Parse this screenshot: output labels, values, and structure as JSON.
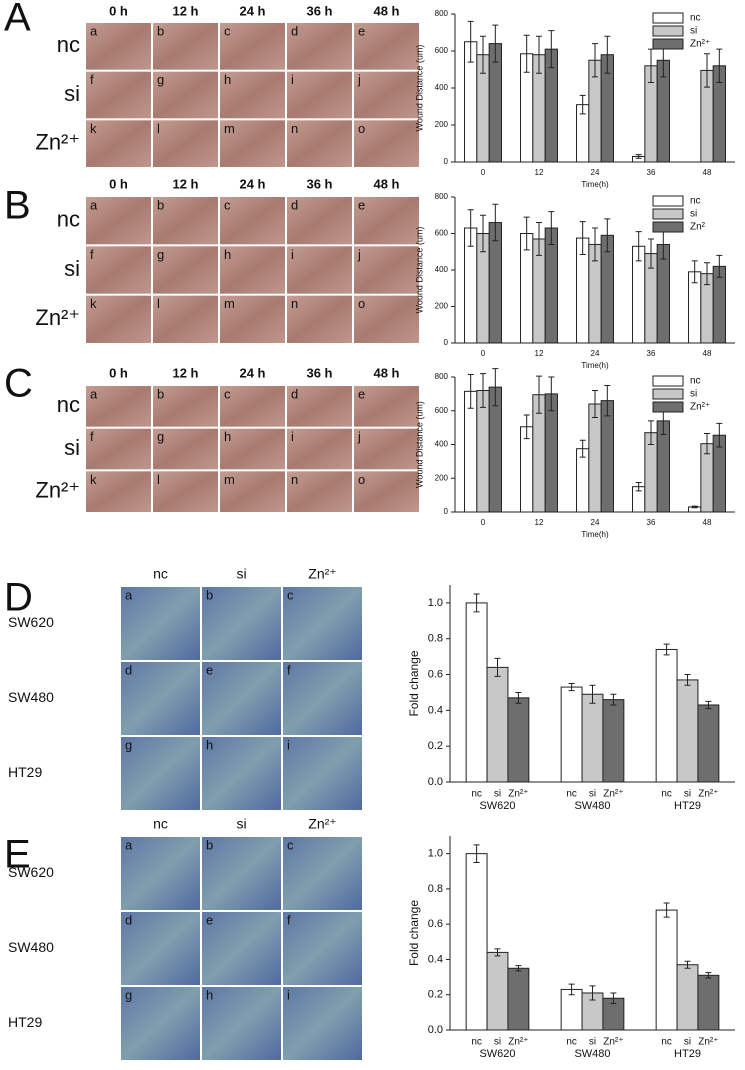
{
  "panels": [
    {
      "letter": "A",
      "columns": [
        "0 h",
        "12 h",
        "24 h",
        "36 h",
        "48 h"
      ],
      "rows": [
        "nc",
        "si",
        "Zn²⁺"
      ],
      "cells": [
        "a",
        "b",
        "c",
        "d",
        "e",
        "f",
        "g",
        "h",
        "i",
        "j",
        "k",
        "l",
        "m",
        "n",
        "o"
      ]
    },
    {
      "letter": "B",
      "columns": [
        "0 h",
        "12 h",
        "24 h",
        "36 h",
        "48 h"
      ],
      "rows": [
        "nc",
        "si",
        "Zn²⁺"
      ],
      "cells": [
        "a",
        "b",
        "c",
        "d",
        "e",
        "f",
        "g",
        "h",
        "i",
        "j",
        "k",
        "l",
        "m",
        "n",
        "o"
      ]
    },
    {
      "letter": "C",
      "columns": [
        "0 h",
        "12 h",
        "24 h",
        "36 h",
        "48 h"
      ],
      "rows": [
        "nc",
        "si",
        "Zn²⁺"
      ],
      "cells": [
        "a",
        "b",
        "c",
        "d",
        "e",
        "f",
        "g",
        "h",
        "i",
        "j",
        "k",
        "l",
        "m",
        "n",
        "o"
      ]
    },
    {
      "letter": "D",
      "columns": [
        "nc",
        "si",
        "Zn²⁺"
      ],
      "rows": [
        "SW620",
        "SW480",
        "HT29"
      ],
      "cells": [
        "a",
        "b",
        "c",
        "d",
        "e",
        "f",
        "g",
        "h",
        "i"
      ]
    },
    {
      "letter": "E",
      "columns": [
        "nc",
        "si",
        "Zn²⁺"
      ],
      "rows": [
        "SW620",
        "SW480",
        "HT29"
      ],
      "cells": [
        "a",
        "b",
        "c",
        "d",
        "e",
        "f",
        "g",
        "h",
        "i"
      ]
    }
  ],
  "chart_data": [
    {
      "type": "bar",
      "ylabel": "Wound Distance (um)",
      "xlabel": "Time(h)",
      "categories": [
        "0",
        "12",
        "24",
        "36",
        "48"
      ],
      "series": [
        {
          "name": "nc",
          "color": "#ffffff",
          "values": [
            650,
            585,
            310,
            30,
            null
          ],
          "errors": [
            110,
            100,
            50,
            10,
            null
          ]
        },
        {
          "name": "si",
          "color": "#c8c8c8",
          "values": [
            580,
            580,
            550,
            520,
            495
          ],
          "errors": [
            100,
            100,
            90,
            90,
            90
          ]
        },
        {
          "name": "Zn²⁺",
          "color": "#6e6e6e",
          "values": [
            640,
            610,
            580,
            550,
            520
          ],
          "errors": [
            100,
            100,
            100,
            90,
            90
          ]
        }
      ],
      "ylim": [
        0,
        800
      ],
      "yticks": [
        0,
        200,
        400,
        600,
        800
      ],
      "legend": "upper right"
    },
    {
      "type": "bar",
      "ylabel": "Wound Distance (um)",
      "xlabel": "Time(h)",
      "categories": [
        "0",
        "12",
        "24",
        "36",
        "48"
      ],
      "series": [
        {
          "name": "nc",
          "color": "#ffffff",
          "values": [
            630,
            600,
            575,
            530,
            390
          ],
          "errors": [
            100,
            90,
            90,
            80,
            60
          ]
        },
        {
          "name": "si",
          "color": "#c8c8c8",
          "values": [
            600,
            570,
            540,
            490,
            380
          ],
          "errors": [
            100,
            90,
            90,
            80,
            60
          ]
        },
        {
          "name": "Zn²",
          "color": "#6e6e6e",
          "values": [
            660,
            630,
            590,
            540,
            420
          ],
          "errors": [
            100,
            90,
            90,
            80,
            60
          ]
        }
      ],
      "ylim": [
        0,
        800
      ],
      "yticks": [
        0,
        200,
        400,
        600,
        800
      ],
      "legend": "upper right"
    },
    {
      "type": "bar",
      "ylabel": "Wound Distance (um)",
      "xlabel": "Time(h)",
      "categories": [
        "0",
        "12",
        "24",
        "36",
        "48"
      ],
      "series": [
        {
          "name": "nc",
          "color": "#ffffff",
          "values": [
            715,
            505,
            375,
            150,
            30
          ],
          "errors": [
            100,
            70,
            50,
            25,
            5
          ]
        },
        {
          "name": "si",
          "color": "#c8c8c8",
          "values": [
            720,
            695,
            640,
            470,
            405
          ],
          "errors": [
            100,
            110,
            80,
            70,
            60
          ]
        },
        {
          "name": "Zn²⁺",
          "color": "#6e6e6e",
          "values": [
            740,
            700,
            660,
            540,
            455
          ],
          "errors": [
            110,
            100,
            90,
            80,
            70
          ]
        }
      ],
      "ylim": [
        0,
        800
      ],
      "yticks": [
        0,
        200,
        400,
        600,
        800
      ],
      "legend": "upper right"
    },
    {
      "type": "bar",
      "ylabel": "Fold change",
      "categories": [
        "SW620",
        "SW480",
        "HT29"
      ],
      "series": [
        {
          "name": "nc",
          "color": "#ffffff",
          "values": [
            1.0,
            0.53,
            0.74
          ],
          "errors": [
            0.05,
            0.02,
            0.03
          ]
        },
        {
          "name": "si",
          "color": "#c8c8c8",
          "values": [
            0.64,
            0.49,
            0.57
          ],
          "errors": [
            0.05,
            0.05,
            0.03
          ]
        },
        {
          "name": "Zn²⁺",
          "color": "#6e6e6e",
          "values": [
            0.47,
            0.46,
            0.43
          ],
          "errors": [
            0.03,
            0.03,
            0.02
          ]
        }
      ],
      "ylim": [
        0,
        1.1
      ],
      "yticks": [
        {
          "value": 0,
          "label": "0.0"
        },
        {
          "value": 0.2,
          "label": "0.2"
        },
        {
          "value": 0.4,
          "label": "0.4"
        },
        {
          "value": 0.6,
          "label": "0.6"
        },
        {
          "value": 0.8,
          "label": "0.8"
        },
        {
          "value": 1.0,
          "label": "1.0"
        }
      ]
    },
    {
      "type": "bar",
      "ylabel": "Fold change",
      "categories": [
        "SW620",
        "SW480",
        "HT29"
      ],
      "series": [
        {
          "name": "nc",
          "color": "#ffffff",
          "values": [
            1.0,
            0.23,
            0.68
          ],
          "errors": [
            0.05,
            0.03,
            0.04
          ]
        },
        {
          "name": "si",
          "color": "#c8c8c8",
          "values": [
            0.44,
            0.21,
            0.37
          ],
          "errors": [
            0.02,
            0.04,
            0.02
          ]
        },
        {
          "name": "Zn²⁺",
          "color": "#6e6e6e",
          "values": [
            0.35,
            0.18,
            0.31
          ],
          "errors": [
            0.015,
            0.03,
            0.015
          ]
        }
      ],
      "ylim": [
        0,
        1.1
      ],
      "yticks": [
        {
          "value": 0,
          "label": "0.0"
        },
        {
          "value": 0.2,
          "label": "0.2"
        },
        {
          "value": 0.4,
          "label": "0.4"
        },
        {
          "value": 0.6,
          "label": "0.6"
        },
        {
          "value": 0.8,
          "label": "0.8"
        },
        {
          "value": 1.0,
          "label": "1.0"
        }
      ]
    }
  ]
}
